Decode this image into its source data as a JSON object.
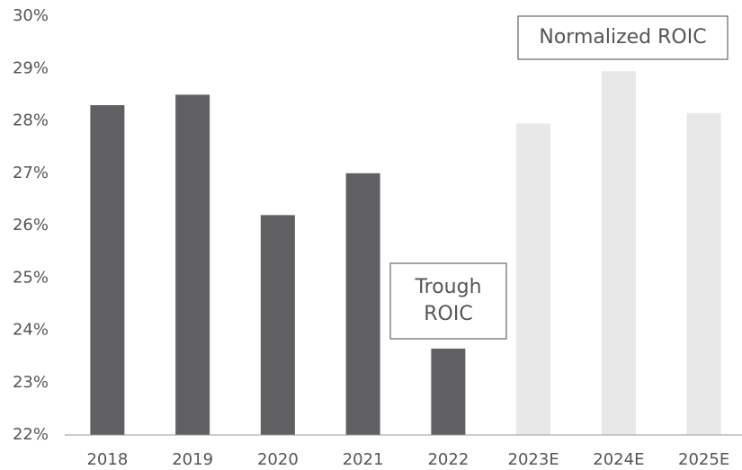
{
  "chart_data": {
    "type": "bar",
    "categories": [
      "2018",
      "2019",
      "2020",
      "2021",
      "2022",
      "2023E",
      "2024E",
      "2025E"
    ],
    "values": [
      28.3,
      28.5,
      26.2,
      27.0,
      23.65,
      27.95,
      28.95,
      28.15
    ],
    "colors": [
      "#606063",
      "#606063",
      "#606063",
      "#606063",
      "#606063",
      "#e8e8e9",
      "#e8e8e9",
      "#e8e8e9"
    ],
    "ylim": [
      22,
      30
    ],
    "yticks": [
      {
        "value": 22,
        "label": "22%"
      },
      {
        "value": 23,
        "label": "23%"
      },
      {
        "value": 24,
        "label": "24%"
      },
      {
        "value": 25,
        "label": "25%"
      },
      {
        "value": 26,
        "label": "26%"
      },
      {
        "value": 27,
        "label": "27%"
      },
      {
        "value": 28,
        "label": "28%"
      },
      {
        "value": 29,
        "label": "29%"
      },
      {
        "value": 30,
        "label": "30%"
      }
    ],
    "grid": false,
    "annotations": [
      {
        "lines": [
          "Trough",
          "ROIC"
        ]
      },
      {
        "lines": [
          "Normalized ROIC"
        ]
      }
    ]
  }
}
